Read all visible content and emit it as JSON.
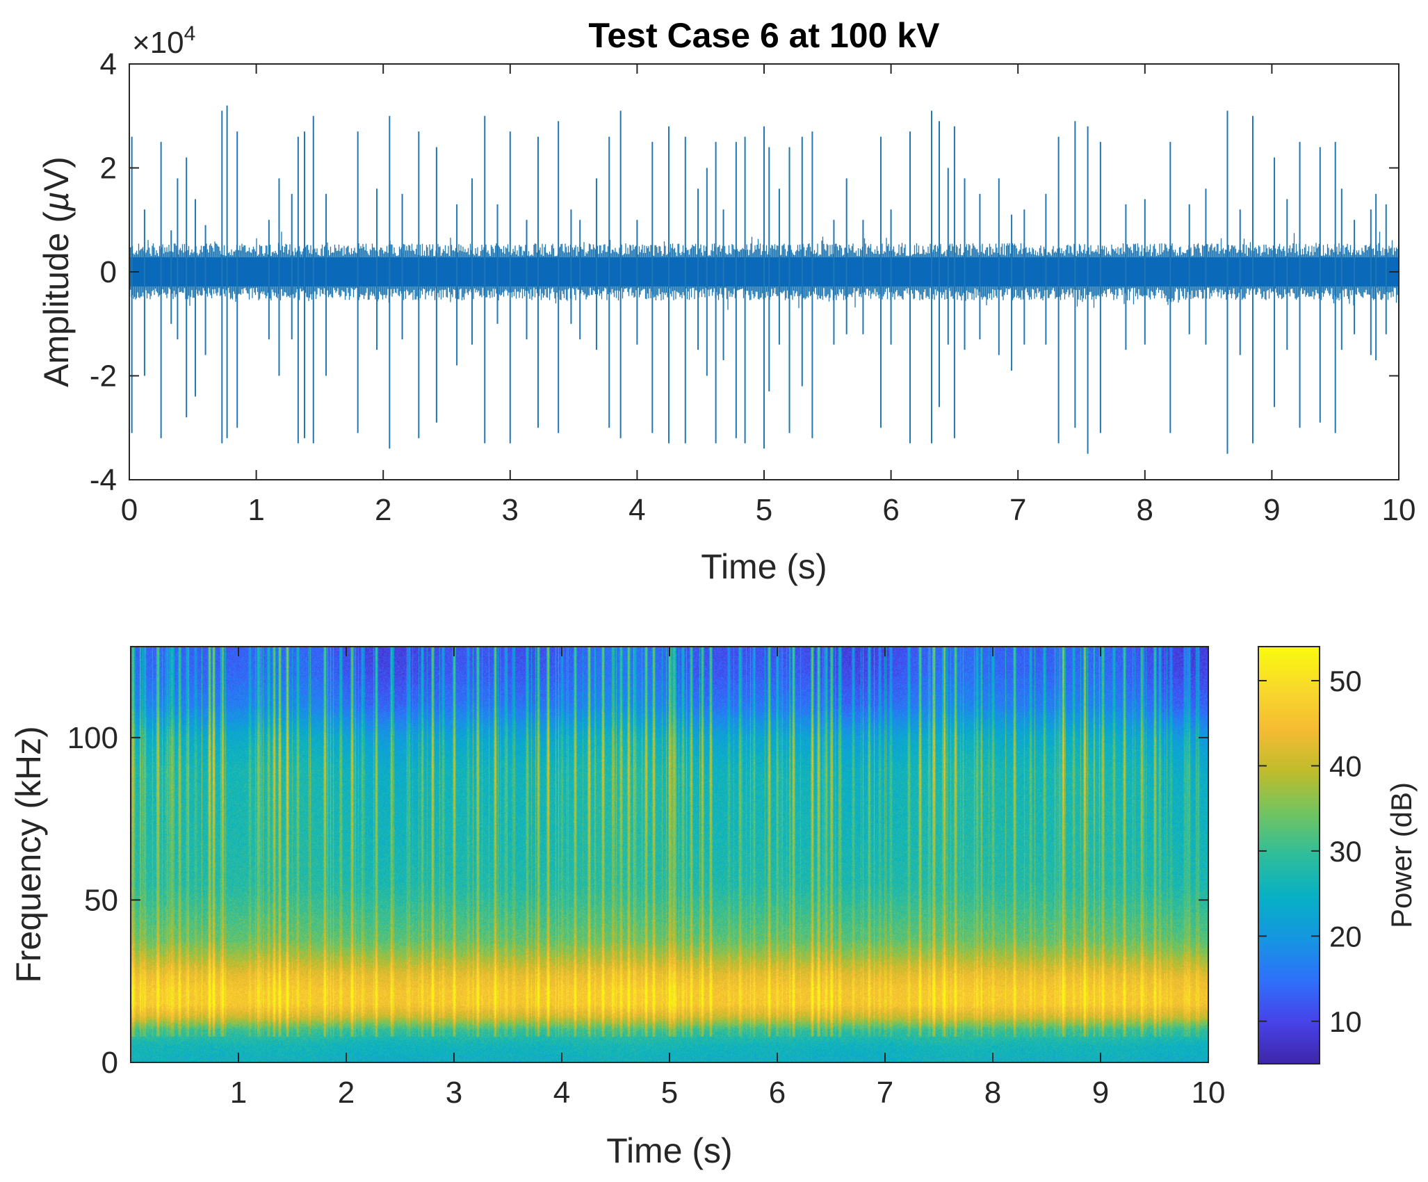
{
  "chart_data": [
    {
      "type": "line",
      "title": "Test Case 6 at 100 kV",
      "xlabel": "Time (s)",
      "ylabel": "Amplitude (µV)",
      "ylabel_parts": [
        "Amplitude (",
        "µ",
        "V)"
      ],
      "y_exponent": {
        "base": "×10",
        "power": "4"
      },
      "xlim": [
        0,
        10
      ],
      "ylim": [
        -4,
        4
      ],
      "xticks": [
        0,
        1,
        2,
        3,
        4,
        5,
        6,
        7,
        8,
        9,
        10
      ],
      "yticks": [
        -4,
        -2,
        0,
        2,
        4
      ],
      "xtick_labels": [
        "0",
        "1",
        "2",
        "3",
        "4",
        "5",
        "6",
        "7",
        "8",
        "9",
        "10"
      ],
      "ytick_labels": [
        "-4",
        "-2",
        "0",
        "2",
        "4"
      ],
      "color": "#1f77b4",
      "band_color": "#0a69b8",
      "noise_band": [
        -0.55,
        0.55
      ],
      "spikes": [
        {
          "t": 0.02,
          "pos": 2.6,
          "neg": -3.1
        },
        {
          "t": 0.12,
          "pos": 1.2,
          "neg": -2.0
        },
        {
          "t": 0.25,
          "pos": 2.5,
          "neg": -3.2
        },
        {
          "t": 0.33,
          "pos": 0.8,
          "neg": -1.0
        },
        {
          "t": 0.38,
          "pos": 1.8,
          "neg": -1.3
        },
        {
          "t": 0.45,
          "pos": 2.2,
          "neg": -2.8
        },
        {
          "t": 0.52,
          "pos": 1.4,
          "neg": -2.4
        },
        {
          "t": 0.6,
          "pos": 0.9,
          "neg": -1.6
        },
        {
          "t": 0.73,
          "pos": 3.1,
          "neg": -3.3
        },
        {
          "t": 0.77,
          "pos": 3.2,
          "neg": -3.2
        },
        {
          "t": 0.85,
          "pos": 2.7,
          "neg": -3.0
        },
        {
          "t": 1.1,
          "pos": 1.0,
          "neg": -1.3
        },
        {
          "t": 1.18,
          "pos": 1.8,
          "neg": -2.0
        },
        {
          "t": 1.28,
          "pos": 1.5,
          "neg": -1.3
        },
        {
          "t": 1.33,
          "pos": 2.6,
          "neg": -3.3
        },
        {
          "t": 1.38,
          "pos": 2.7,
          "neg": -3.2
        },
        {
          "t": 1.45,
          "pos": 3.0,
          "neg": -3.3
        },
        {
          "t": 1.55,
          "pos": 1.5,
          "neg": -2.0
        },
        {
          "t": 1.8,
          "pos": 2.7,
          "neg": -3.1
        },
        {
          "t": 1.95,
          "pos": 1.6,
          "neg": -1.5
        },
        {
          "t": 2.05,
          "pos": 3.0,
          "neg": -3.4
        },
        {
          "t": 2.15,
          "pos": 1.5,
          "neg": -1.3
        },
        {
          "t": 2.28,
          "pos": 2.7,
          "neg": -3.2
        },
        {
          "t": 2.42,
          "pos": 2.4,
          "neg": -2.9
        },
        {
          "t": 2.58,
          "pos": 1.3,
          "neg": -1.8
        },
        {
          "t": 2.7,
          "pos": 1.8,
          "neg": -1.4
        },
        {
          "t": 2.8,
          "pos": 3.0,
          "neg": -3.3
        },
        {
          "t": 2.9,
          "pos": 1.3,
          "neg": -1.0
        },
        {
          "t": 3.0,
          "pos": 2.7,
          "neg": -3.3
        },
        {
          "t": 3.13,
          "pos": 1.0,
          "neg": -1.3
        },
        {
          "t": 3.22,
          "pos": 2.6,
          "neg": -3.0
        },
        {
          "t": 3.38,
          "pos": 2.9,
          "neg": -3.1
        },
        {
          "t": 3.48,
          "pos": 1.2,
          "neg": -1.0
        },
        {
          "t": 3.55,
          "pos": 1.0,
          "neg": -1.3
        },
        {
          "t": 3.68,
          "pos": 1.8,
          "neg": -1.5
        },
        {
          "t": 3.78,
          "pos": 2.6,
          "neg": -3.0
        },
        {
          "t": 3.87,
          "pos": 3.1,
          "neg": -3.2
        },
        {
          "t": 4.0,
          "pos": 1.0,
          "neg": -1.4
        },
        {
          "t": 4.12,
          "pos": 2.5,
          "neg": -3.1
        },
        {
          "t": 4.25,
          "pos": 2.8,
          "neg": -3.3
        },
        {
          "t": 4.38,
          "pos": 2.6,
          "neg": -3.3
        },
        {
          "t": 4.48,
          "pos": 1.6,
          "neg": -1.5
        },
        {
          "t": 4.55,
          "pos": 2.0,
          "neg": -2.0
        },
        {
          "t": 4.62,
          "pos": 2.5,
          "neg": -3.3
        },
        {
          "t": 4.68,
          "pos": 1.2,
          "neg": -1.7
        },
        {
          "t": 4.78,
          "pos": 2.5,
          "neg": -3.2
        },
        {
          "t": 4.85,
          "pos": 2.6,
          "neg": -3.3
        },
        {
          "t": 5.0,
          "pos": 2.8,
          "neg": -3.4
        },
        {
          "t": 5.04,
          "pos": 2.4,
          "neg": -2.3
        },
        {
          "t": 5.12,
          "pos": 1.6,
          "neg": -1.4
        },
        {
          "t": 5.2,
          "pos": 2.4,
          "neg": -3.1
        },
        {
          "t": 5.3,
          "pos": 2.6,
          "neg": -2.2
        },
        {
          "t": 5.38,
          "pos": 2.7,
          "neg": -3.2
        },
        {
          "t": 5.55,
          "pos": 1.0,
          "neg": -1.4
        },
        {
          "t": 5.65,
          "pos": 1.8,
          "neg": -1.2
        },
        {
          "t": 5.78,
          "pos": 1.0,
          "neg": -1.2
        },
        {
          "t": 5.92,
          "pos": 2.6,
          "neg": -3.0
        },
        {
          "t": 6.0,
          "pos": 1.2,
          "neg": -1.4
        },
        {
          "t": 6.15,
          "pos": 2.7,
          "neg": -3.3
        },
        {
          "t": 6.32,
          "pos": 3.1,
          "neg": -3.3
        },
        {
          "t": 6.38,
          "pos": 2.9,
          "neg": -2.6
        },
        {
          "t": 6.45,
          "pos": 2.0,
          "neg": -1.4
        },
        {
          "t": 6.5,
          "pos": 2.8,
          "neg": -3.2
        },
        {
          "t": 6.58,
          "pos": 1.8,
          "neg": -1.5
        },
        {
          "t": 6.7,
          "pos": 1.5,
          "neg": -1.3
        },
        {
          "t": 6.85,
          "pos": 1.8,
          "neg": -1.6
        },
        {
          "t": 6.95,
          "pos": 1.1,
          "neg": -1.9
        },
        {
          "t": 7.05,
          "pos": 1.2,
          "neg": -1.4
        },
        {
          "t": 7.22,
          "pos": 1.5,
          "neg": -1.4
        },
        {
          "t": 7.32,
          "pos": 2.6,
          "neg": -3.3
        },
        {
          "t": 7.45,
          "pos": 2.9,
          "neg": -3.0
        },
        {
          "t": 7.55,
          "pos": 2.8,
          "neg": -3.5
        },
        {
          "t": 7.65,
          "pos": 2.5,
          "neg": -3.1
        },
        {
          "t": 7.85,
          "pos": 1.3,
          "neg": -1.5
        },
        {
          "t": 8.0,
          "pos": 1.4,
          "neg": -1.4
        },
        {
          "t": 8.2,
          "pos": 2.5,
          "neg": -3.1
        },
        {
          "t": 8.35,
          "pos": 1.3,
          "neg": -1.2
        },
        {
          "t": 8.48,
          "pos": 1.6,
          "neg": -1.4
        },
        {
          "t": 8.65,
          "pos": 3.1,
          "neg": -3.5
        },
        {
          "t": 8.75,
          "pos": 1.2,
          "neg": -1.6
        },
        {
          "t": 8.85,
          "pos": 3.0,
          "neg": -3.3
        },
        {
          "t": 9.02,
          "pos": 2.2,
          "neg": -2.6
        },
        {
          "t": 9.12,
          "pos": 1.4,
          "neg": -1.5
        },
        {
          "t": 9.22,
          "pos": 2.5,
          "neg": -3.0
        },
        {
          "t": 9.38,
          "pos": 2.4,
          "neg": -2.9
        },
        {
          "t": 9.5,
          "pos": 2.5,
          "neg": -3.1
        },
        {
          "t": 9.55,
          "pos": 1.6,
          "neg": -1.5
        },
        {
          "t": 9.65,
          "pos": 1.0,
          "neg": -1.2
        },
        {
          "t": 9.78,
          "pos": 1.2,
          "neg": -1.6
        },
        {
          "t": 9.82,
          "pos": 1.5,
          "neg": -1.7
        },
        {
          "t": 9.9,
          "pos": 1.3,
          "neg": -1.2
        }
      ]
    },
    {
      "type": "heatmap",
      "title": "",
      "xlabel": "Time (s)",
      "ylabel": "Frequency (kHz)",
      "xlim": [
        0,
        10
      ],
      "ylim": [
        0,
        128
      ],
      "xticks": [
        1,
        2,
        3,
        4,
        5,
        6,
        7,
        8,
        9,
        10
      ],
      "yticks": [
        0,
        50,
        100
      ],
      "xtick_labels": [
        "1",
        "2",
        "3",
        "4",
        "5",
        "6",
        "7",
        "8",
        "9",
        "10"
      ],
      "ytick_labels": [
        "0",
        "50",
        "100"
      ],
      "colormap": "parula",
      "colormap_stops": [
        "#3e26a8",
        "#4743e8",
        "#2f70fb",
        "#1596e1",
        "#07b0c6",
        "#2ebd9b",
        "#71c461",
        "#bebc2c",
        "#f5bb33",
        "#f9d92b",
        "#f9fb0e"
      ],
      "colorbar": {
        "label": "Power (dB)",
        "range": [
          5,
          54
        ],
        "ticks": [
          10,
          20,
          30,
          40,
          50
        ],
        "tick_labels": [
          "10",
          "20",
          "30",
          "40",
          "50"
        ]
      },
      "band_profile": [
        {
          "f": 0,
          "db": 25
        },
        {
          "f": 5,
          "db": 26
        },
        {
          "f": 10,
          "db": 30
        },
        {
          "f": 14,
          "db": 40
        },
        {
          "f": 18,
          "db": 46
        },
        {
          "f": 22,
          "db": 46
        },
        {
          "f": 27,
          "db": 43
        },
        {
          "f": 33,
          "db": 37
        },
        {
          "f": 38,
          "db": 33
        },
        {
          "f": 45,
          "db": 31
        },
        {
          "f": 55,
          "db": 28
        },
        {
          "f": 70,
          "db": 27
        },
        {
          "f": 90,
          "db": 26
        },
        {
          "f": 100,
          "db": 23
        },
        {
          "f": 110,
          "db": 16
        },
        {
          "f": 120,
          "db": 13
        },
        {
          "f": 128,
          "db": 12
        }
      ]
    }
  ]
}
